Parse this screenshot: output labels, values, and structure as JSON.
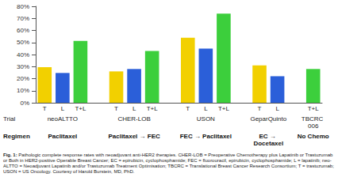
{
  "chart_data": {
    "type": "bar",
    "categories": [
      "neoALTTO",
      "CHER-LOB",
      "USON",
      "GeparQuinto",
      "TBCRC 006"
    ],
    "regimens": [
      "Paclitaxel",
      "Paclitaxel → FEC",
      "FEC → Paclitaxel",
      "EC → Docetaxel",
      "No Chemo"
    ],
    "row_labels": [
      "Trial",
      "Regimen"
    ],
    "series": [
      {
        "name": "T",
        "color": "#f2d000",
        "values": [
          29.5,
          26,
          54,
          31,
          null
        ]
      },
      {
        "name": "L",
        "color": "#2b5fd9",
        "values": [
          24.7,
          28,
          45,
          22,
          null
        ]
      },
      {
        "name": "T+L",
        "color": "#3ccf3c",
        "values": [
          51.3,
          43,
          74,
          null,
          28
        ]
      }
    ],
    "ylim": [
      0,
      80
    ],
    "yticks": [
      {
        "value": 0,
        "label": "0%"
      },
      {
        "value": 10,
        "label": "10%"
      },
      {
        "value": 20,
        "label": "20%"
      },
      {
        "value": 30,
        "label": "30%"
      },
      {
        "value": 40,
        "label": "40%"
      },
      {
        "value": 50,
        "label": "50%"
      },
      {
        "value": 60,
        "label": "60%"
      },
      {
        "value": 70,
        "label": "70%"
      },
      {
        "value": 80,
        "label": "80%"
      }
    ],
    "grid": false,
    "caption_label": "Fig. 1:",
    "caption": "Pathologic complete response rates with neoadjuvant anti-HER2 therapies. CHER-LOB = Preoperative Chemotherapy plus Lapatinib or Trastuzumab or Both in HER2-positive Operable Breast Cancer; EC = epirubicin, cyclophosphamide; FEC = fluorouracil, epirubicin, cyclophosphamide; L = lapatinib; neo-ALTTO = Neoadjuvant Lapatinib and/or Trastuzumab Treatment Optimisation; TBCRC = Translational Breast Cancer Research Consortium; T = trastuzumab; USON = US Oncology. Courtesy of Harold Burstein, MD, PhD."
  }
}
